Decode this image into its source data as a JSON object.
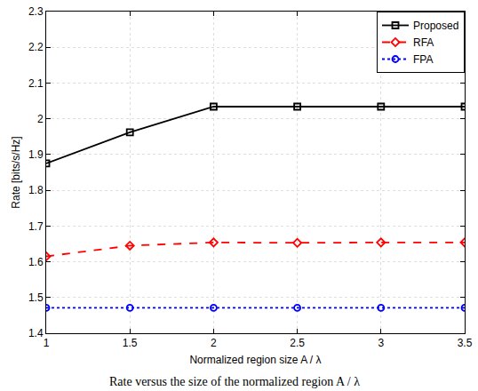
{
  "chart_data": {
    "type": "line",
    "x_label": "Normalized region size A / λ",
    "y_label": "Rate [bits/s/Hz]",
    "x": [
      1,
      1.5,
      2,
      2.5,
      3,
      3.5
    ],
    "series": [
      {
        "name": "Proposed",
        "color": "#000000",
        "marker": "square",
        "line_style": "solid",
        "values": [
          1.875,
          1.962,
          2.034,
          2.034,
          2.034,
          2.034
        ]
      },
      {
        "name": "RFA",
        "color": "#ff0000",
        "marker": "diamond",
        "line_style": "dash",
        "values": [
          1.615,
          1.645,
          1.654,
          1.653,
          1.654,
          1.654
        ]
      },
      {
        "name": "FPA",
        "color": "#0000ff",
        "marker": "circle",
        "line_style": "dot",
        "values": [
          1.471,
          1.471,
          1.471,
          1.471,
          1.471,
          1.471
        ]
      }
    ],
    "xlim": [
      1,
      3.5
    ],
    "xticks": [
      1,
      1.5,
      2,
      2.5,
      3,
      3.5
    ],
    "ylim": [
      1.4,
      2.3
    ],
    "yticks": [
      1.4,
      1.5,
      1.6,
      1.7,
      1.8,
      1.9,
      2,
      2.1,
      2.2,
      2.3
    ],
    "grid": true,
    "legend": "top-right",
    "annotations": [
      "Rate versus the size of the normalized region A / λ"
    ]
  }
}
